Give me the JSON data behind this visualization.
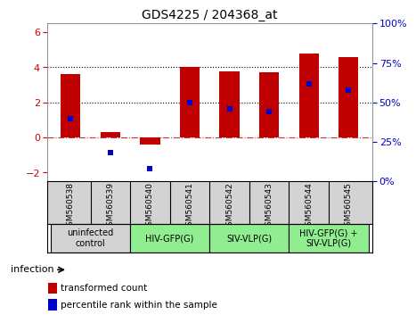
{
  "title": "GDS4225 / 204368_at",
  "samples": [
    "GSM560538",
    "GSM560539",
    "GSM560540",
    "GSM560541",
    "GSM560542",
    "GSM560543",
    "GSM560544",
    "GSM560545"
  ],
  "transformed_counts": [
    3.6,
    0.3,
    -0.4,
    4.0,
    3.75,
    3.7,
    4.8,
    4.6
  ],
  "percentile_ranks": [
    40,
    18,
    8,
    50,
    46,
    44,
    62,
    58
  ],
  "ylim_left": [
    -2.5,
    6.5
  ],
  "ylim_right": [
    0,
    100
  ],
  "yticks_left": [
    -2,
    0,
    2,
    4,
    6
  ],
  "yticks_right": [
    0,
    25,
    50,
    75,
    100
  ],
  "dotted_lines": [
    2.0,
    4.0
  ],
  "dashed_line_y": 0.0,
  "bar_color": "#c00000",
  "marker_color": "#0000cc",
  "bar_width": 0.5,
  "groups": [
    {
      "label": "uninfected\ncontrol",
      "start": 0,
      "end": 1,
      "color": "#d3d3d3"
    },
    {
      "label": "HIV-GFP(G)",
      "start": 2,
      "end": 3,
      "color": "#90ee90"
    },
    {
      "label": "SIV-VLP(G)",
      "start": 4,
      "end": 5,
      "color": "#90ee90"
    },
    {
      "label": "HIV-GFP(G) +\nSIV-VLP(G)",
      "start": 6,
      "end": 7,
      "color": "#90ee90"
    }
  ],
  "ylabel_left_color": "#cc0000",
  "ylabel_right_color": "#0000cc",
  "title_fontsize": 10,
  "legend_red_label": "transformed count",
  "legend_blue_label": "percentile rank within the sample",
  "infection_label": "infection",
  "group_label_fontsize": 7,
  "tick_label_fontsize": 6.5,
  "sample_bg_color": "#d3d3d3",
  "axis_bg_color": "#ffffff"
}
